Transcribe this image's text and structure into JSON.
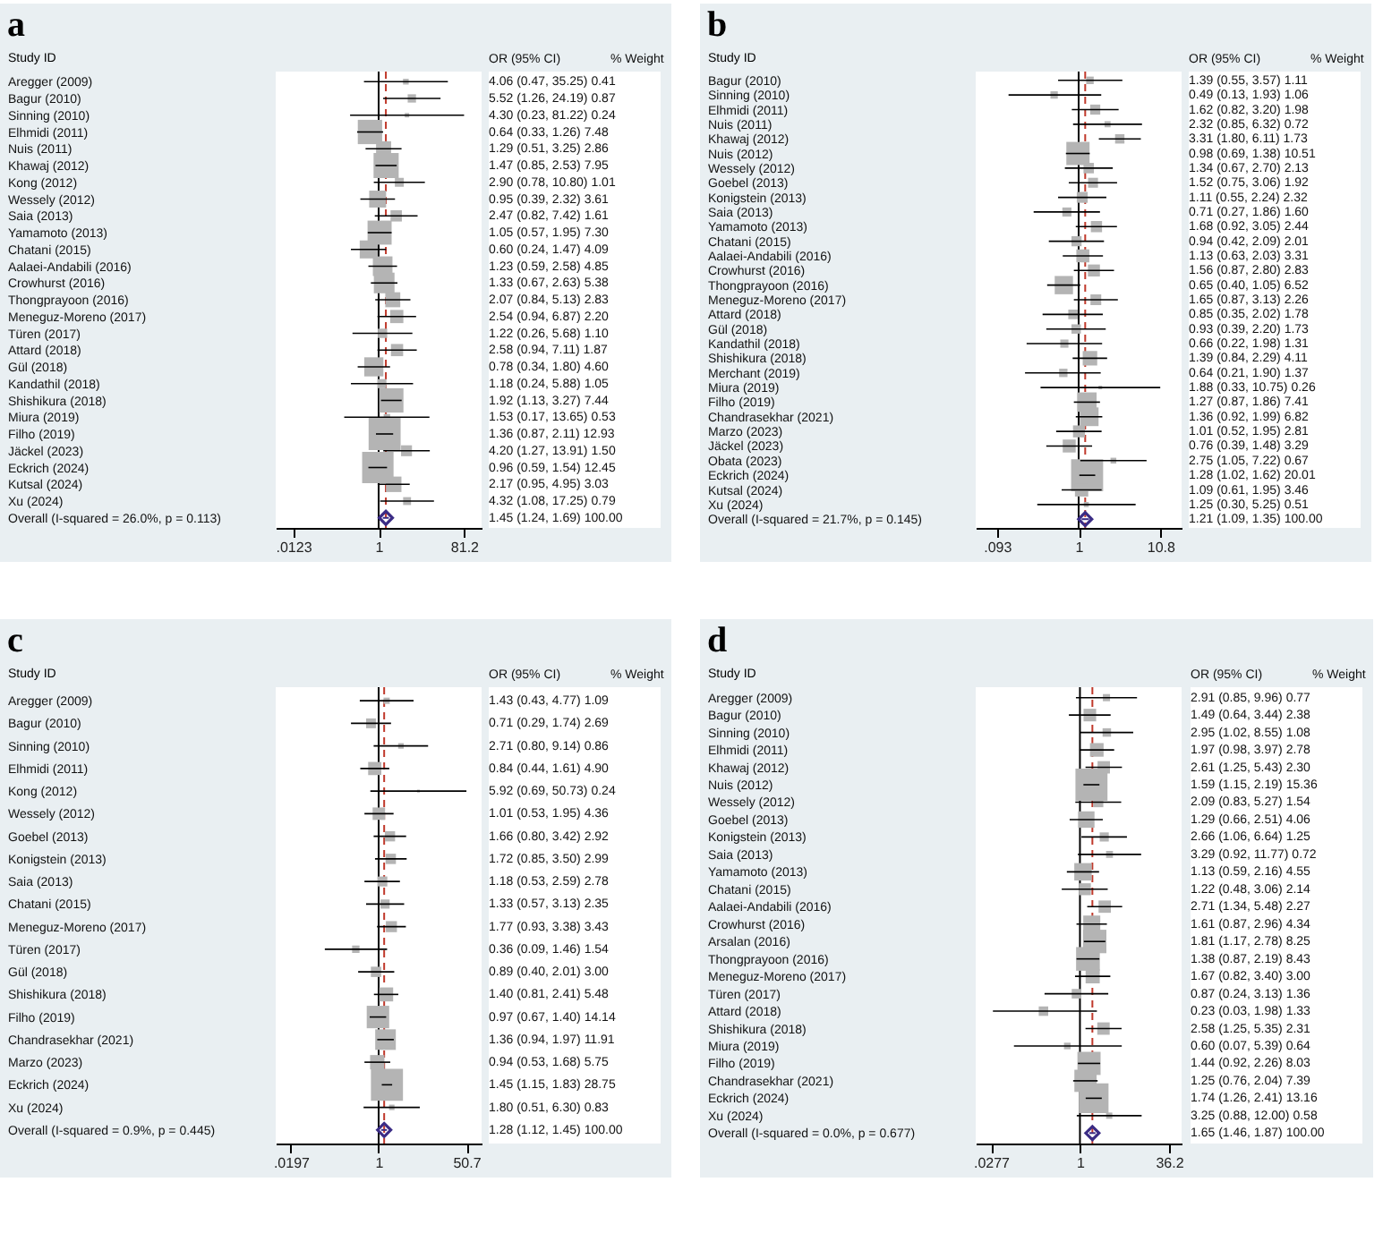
{
  "chart_data": [
    {
      "type": "bubble",
      "orientation": "horizontal",
      "title": "a",
      "ylabel": "Study ID",
      "log": "x",
      "marker": "square",
      "xlim": [
        0.005,
        200
      ],
      "xticks": [
        {
          "value": 0.0123,
          "label": ".0123"
        },
        1,
        81.2
      ],
      "categories": [
        "Aregger (2009)",
        "Bagur (2010)",
        "Sinning (2010)",
        "Elhmidi (2011)",
        "Nuis (2011)",
        "Khawaj (2012)",
        "Kong (2012)",
        "Wessely (2012)",
        "Saia (2013)",
        "Yamamoto (2013)",
        "Chatani (2015)",
        "Aalaei-Andabili (2016)",
        "Crowhurst (2016)",
        "Thongprayoon (2016)",
        "Meneguz-Moreno (2017)",
        "Türen (2017)",
        "Attard (2018)",
        "Gül (2018)",
        "Kandathil (2018)",
        "Shishikura (2018)",
        "Miura (2019)",
        "Filho (2019)",
        "Jäckel (2023)",
        "Eckrich (2024)",
        "Kutsal (2024)",
        "Xu (2024)",
        "Overall (I-squared = 26.0%, p = 0.113)"
      ],
      "annotations": [
        "OR (95% CI)",
        "% Weight",
        "4.06 (0.47, 35.25) 0.41",
        "5.52 (1.26, 24.19) 0.87",
        "4.30 (0.23, 81.22) 0.24",
        "0.64 (0.33, 1.26) 7.48",
        "1.29 (0.51, 3.25) 2.86",
        "1.47 (0.85, 2.53) 7.95",
        "2.90 (0.78, 10.80) 1.01",
        "0.95 (0.39, 2.32) 3.61",
        "2.47 (0.82, 7.42) 1.61",
        "1.05 (0.57, 1.95) 7.30",
        "0.60 (0.24, 1.47) 4.09",
        "1.23 (0.59, 2.58) 4.85",
        "1.33 (0.67, 2.63) 5.38",
        "2.07 (0.84, 5.13) 2.83",
        "2.54 (0.94, 6.87) 2.20",
        "1.22 (0.26, 5.68) 1.10",
        "2.58 (0.94, 7.11) 1.87",
        "0.78 (0.34, 1.80) 4.60",
        "1.18 (0.24, 5.88) 1.05",
        "1.92 (1.13, 3.27) 7.44",
        "1.53 (0.17, 13.65) 0.53",
        "1.36 (0.87, 2.11) 12.93",
        "4.20 (1.27, 13.91) 1.50",
        "0.96 (0.59, 1.54) 12.45",
        "2.17 (0.95, 4.95) 3.03",
        "4.32 (1.08, 17.25) 0.79",
        "1.45 (1.24, 1.69) 100.00"
      ],
      "ref_lines": [
        {
          "axis": "x",
          "value": 1,
          "color": "#000000",
          "line_style": "solid"
        },
        {
          "axis": "x",
          "value": 1.45,
          "color": "#c0392b",
          "line_style": "dashed"
        }
      ],
      "series": [
        {
          "color": "#b4b4b4",
          "values": [
            4.06,
            5.52,
            4.3,
            0.64,
            1.29,
            1.47,
            2.9,
            0.95,
            2.47,
            1.05,
            0.6,
            1.23,
            1.33,
            2.07,
            2.54,
            1.22,
            2.58,
            0.78,
            1.18,
            1.92,
            1.53,
            1.36,
            4.2,
            0.96,
            2.17,
            4.32,
            null
          ],
          "errors": [
            [
              0.47,
              35.25
            ],
            [
              1.26,
              24.19
            ],
            [
              0.23,
              81.22
            ],
            [
              0.33,
              1.26
            ],
            [
              0.51,
              3.25
            ],
            [
              0.85,
              2.53
            ],
            [
              0.78,
              10.8
            ],
            [
              0.39,
              2.32
            ],
            [
              0.82,
              7.42
            ],
            [
              0.57,
              1.95
            ],
            [
              0.24,
              1.47
            ],
            [
              0.59,
              2.58
            ],
            [
              0.67,
              2.63
            ],
            [
              0.84,
              5.13
            ],
            [
              0.94,
              6.87
            ],
            [
              0.26,
              5.68
            ],
            [
              0.94,
              7.11
            ],
            [
              0.34,
              1.8
            ],
            [
              0.24,
              5.88
            ],
            [
              1.13,
              3.27
            ],
            [
              0.17,
              13.65
            ],
            [
              0.87,
              2.11
            ],
            [
              1.27,
              13.91
            ],
            [
              0.59,
              1.54
            ],
            [
              0.95,
              4.95
            ],
            [
              1.08,
              17.25
            ],
            null
          ],
          "sizes": [
            0.032,
            0.067,
            0.019,
            0.578,
            0.221,
            0.615,
            0.078,
            0.279,
            0.125,
            0.565,
            0.316,
            0.375,
            0.416,
            0.219,
            0.17,
            0.085,
            0.145,
            0.356,
            0.081,
            0.575,
            0.041,
            1,
            0.116,
            0.963,
            0.234,
            0.061,
            null
          ]
        },
        {
          "color": "#3b2c85",
          "marker": "diamond",
          "values": [
            null,
            null,
            null,
            null,
            null,
            null,
            null,
            null,
            null,
            null,
            null,
            null,
            null,
            null,
            null,
            null,
            null,
            null,
            null,
            null,
            null,
            null,
            null,
            null,
            null,
            null,
            1.45
          ],
          "errors": [
            null,
            null,
            null,
            null,
            null,
            null,
            null,
            null,
            null,
            null,
            null,
            null,
            null,
            null,
            null,
            null,
            null,
            null,
            null,
            null,
            null,
            null,
            null,
            null,
            null,
            null,
            [
              1.24,
              1.69
            ]
          ]
        }
      ]
    },
    {
      "type": "bubble",
      "orientation": "horizontal",
      "title": "b",
      "ylabel": "Study ID",
      "log": "x",
      "marker": "square",
      "xlim": [
        0.05,
        20
      ],
      "xticks": [
        {
          "value": 0.093,
          "label": ".093"
        },
        1,
        10.8
      ],
      "categories": [
        "Bagur (2010)",
        "Sinning (2010)",
        "Elhmidi (2011)",
        "Nuis (2011)",
        "Khawaj (2012)",
        "Nuis (2012)",
        "Wessely (2012)",
        "Goebel (2013)",
        "Konigstein (2013)",
        "Saia (2013)",
        "Yamamoto (2013)",
        "Chatani (2015)",
        "Aalaei-Andabili (2016)",
        "Crowhurst (2016)",
        "Thongprayoon (2016)",
        "Meneguz-Moreno (2017)",
        "Attard (2018)",
        "Gül (2018)",
        "Kandathil (2018)",
        "Shishikura (2018)",
        "Merchant (2019)",
        "Miura (2019)",
        "Filho (2019)",
        "Chandrasekhar (2021)",
        "Marzo (2023)",
        "Jäckel (2023)",
        "Obata (2023)",
        "Eckrich (2024)",
        "Kutsal (2024)",
        "Xu (2024)",
        "Overall (I-squared = 21.7%, p = 0.145)"
      ],
      "annotations": [
        "OR (95% CI)",
        "% Weight",
        "1.39 (0.55, 3.57) 1.11",
        "0.49 (0.13, 1.93) 1.06",
        "1.62 (0.82, 3.20) 1.98",
        "2.32 (0.85, 6.32) 0.72",
        "3.31 (1.80, 6.11) 1.73",
        "0.98 (0.69, 1.38) 10.51",
        "1.34 (0.67, 2.70) 2.13",
        "1.52 (0.75, 3.06) 1.92",
        "1.11 (0.55, 2.24) 2.32",
        "0.71 (0.27, 1.86) 1.60",
        "1.68 (0.92, 3.05) 2.44",
        "0.94 (0.42, 2.09) 2.01",
        "1.13 (0.63, 2.03) 3.31",
        "1.56 (0.87, 2.80) 2.83",
        "0.65 (0.40, 1.05) 6.52",
        "1.65 (0.87, 3.13) 2.26",
        "0.85 (0.35, 2.02) 1.78",
        "0.93 (0.39, 2.20) 1.73",
        "0.66 (0.22, 1.98) 1.31",
        "1.39 (0.84, 2.29) 4.11",
        "0.64 (0.21, 1.90) 1.37",
        "1.88 (0.33, 10.75) 0.26",
        "1.27 (0.87, 1.86) 7.41",
        "1.36 (0.92, 1.99) 6.82",
        "1.01 (0.52, 1.95) 2.81",
        "0.76 (0.39, 1.48) 3.29",
        "2.75 (1.05, 7.22) 0.67",
        "1.28 (1.02, 1.62) 20.01",
        "1.09 (0.61, 1.95) 3.46",
        "1.25 (0.30, 5.25) 0.51",
        "1.21 (1.09, 1.35) 100.00"
      ],
      "ref_lines": [
        {
          "axis": "x",
          "value": 1,
          "color": "#000000",
          "line_style": "solid"
        },
        {
          "axis": "x",
          "value": 1.21,
          "color": "#c0392b",
          "line_style": "dashed"
        }
      ],
      "series": [
        {
          "color": "#b4b4b4",
          "values": [
            1.39,
            0.49,
            1.62,
            2.32,
            3.31,
            0.98,
            1.34,
            1.52,
            1.11,
            0.71,
            1.68,
            0.94,
            1.13,
            1.56,
            0.65,
            1.65,
            0.85,
            0.93,
            0.66,
            1.39,
            0.64,
            1.88,
            1.27,
            1.36,
            1.01,
            0.76,
            2.75,
            1.28,
            1.09,
            1.25,
            null
          ],
          "errors": [
            [
              0.55,
              3.57
            ],
            [
              0.13,
              1.93
            ],
            [
              0.82,
              3.2
            ],
            [
              0.85,
              6.32
            ],
            [
              1.8,
              6.11
            ],
            [
              0.69,
              1.38
            ],
            [
              0.67,
              2.7
            ],
            [
              0.75,
              3.06
            ],
            [
              0.55,
              2.24
            ],
            [
              0.27,
              1.86
            ],
            [
              0.92,
              3.05
            ],
            [
              0.42,
              2.09
            ],
            [
              0.63,
              2.03
            ],
            [
              0.87,
              2.8
            ],
            [
              0.4,
              1.05
            ],
            [
              0.87,
              3.13
            ],
            [
              0.35,
              2.02
            ],
            [
              0.39,
              2.2
            ],
            [
              0.22,
              1.98
            ],
            [
              0.84,
              2.29
            ],
            [
              0.21,
              1.9
            ],
            [
              0.33,
              10.75
            ],
            [
              0.87,
              1.86
            ],
            [
              0.92,
              1.99
            ],
            [
              0.52,
              1.95
            ],
            [
              0.39,
              1.48
            ],
            [
              1.05,
              7.22
            ],
            [
              1.02,
              1.62
            ],
            [
              0.61,
              1.95
            ],
            [
              0.3,
              5.25
            ],
            null
          ],
          "sizes": [
            0.055,
            0.053,
            0.099,
            0.036,
            0.086,
            0.525,
            0.106,
            0.096,
            0.116,
            0.08,
            0.122,
            0.1,
            0.165,
            0.141,
            0.326,
            0.113,
            0.089,
            0.086,
            0.065,
            0.205,
            0.068,
            0.013,
            0.37,
            0.341,
            0.14,
            0.164,
            0.033,
            1,
            0.173,
            0.025,
            null
          ]
        },
        {
          "color": "#3b2c85",
          "marker": "diamond",
          "values": [
            null,
            null,
            null,
            null,
            null,
            null,
            null,
            null,
            null,
            null,
            null,
            null,
            null,
            null,
            null,
            null,
            null,
            null,
            null,
            null,
            null,
            null,
            null,
            null,
            null,
            null,
            null,
            null,
            null,
            null,
            1.21
          ],
          "errors": [
            null,
            null,
            null,
            null,
            null,
            null,
            null,
            null,
            null,
            null,
            null,
            null,
            null,
            null,
            null,
            null,
            null,
            null,
            null,
            null,
            null,
            null,
            null,
            null,
            null,
            null,
            null,
            null,
            null,
            null,
            [
              1.09,
              1.35
            ]
          ]
        }
      ]
    },
    {
      "type": "bubble",
      "orientation": "horizontal",
      "title": "c",
      "ylabel": "Study ID",
      "log": "x",
      "marker": "square",
      "xlim": [
        0.01,
        100
      ],
      "xticks": [
        {
          "value": 0.0197,
          "label": ".0197"
        },
        1,
        50.7
      ],
      "categories": [
        "Aregger (2009)",
        "Bagur (2010)",
        "Sinning (2010)",
        "Elhmidi (2011)",
        "Kong (2012)",
        "Wessely (2012)",
        "Goebel (2013)",
        "Konigstein (2013)",
        "Saia (2013)",
        "Chatani (2015)",
        "Meneguz-Moreno (2017)",
        "Türen (2017)",
        "Gül (2018)",
        "Shishikura (2018)",
        "Filho (2019)",
        "Chandrasekhar (2021)",
        "Marzo (2023)",
        "Eckrich (2024)",
        "Xu (2024)",
        "Overall (I-squared = 0.9%, p = 0.445)"
      ],
      "annotations": [
        "OR (95% CI)",
        "% Weight",
        "1.43 (0.43, 4.77) 1.09",
        "0.71 (0.29, 1.74) 2.69",
        "2.71 (0.80, 9.14) 0.86",
        "0.84 (0.44, 1.61) 4.90",
        "5.92 (0.69, 50.73) 0.24",
        "1.01 (0.53, 1.95) 4.36",
        "1.66 (0.80, 3.42) 2.92",
        "1.72 (0.85, 3.50) 2.99",
        "1.18 (0.53, 2.59) 2.78",
        "1.33 (0.57, 3.13) 2.35",
        "1.77 (0.93, 3.38) 3.43",
        "0.36 (0.09, 1.46) 1.54",
        "0.89 (0.40, 2.01) 3.00",
        "1.40 (0.81, 2.41) 5.48",
        "0.97 (0.67, 1.40) 14.14",
        "1.36 (0.94, 1.97) 11.91",
        "0.94 (0.53, 1.68) 5.75",
        "1.45 (1.15, 1.83) 28.75",
        "1.80 (0.51, 6.30) 0.83",
        "1.28 (1.12, 1.45) 100.00"
      ],
      "ref_lines": [
        {
          "axis": "x",
          "value": 1,
          "color": "#000000",
          "line_style": "solid"
        },
        {
          "axis": "x",
          "value": 1.28,
          "color": "#c0392b",
          "line_style": "dashed"
        }
      ],
      "series": [
        {
          "color": "#b4b4b4",
          "values": [
            1.43,
            0.71,
            2.71,
            0.84,
            5.92,
            1.01,
            1.66,
            1.72,
            1.18,
            1.33,
            1.77,
            0.36,
            0.89,
            1.4,
            0.97,
            1.36,
            0.94,
            1.45,
            1.8,
            null
          ],
          "errors": [
            [
              0.43,
              4.77
            ],
            [
              0.29,
              1.74
            ],
            [
              0.8,
              9.14
            ],
            [
              0.44,
              1.61
            ],
            [
              0.69,
              50.73
            ],
            [
              0.53,
              1.95
            ],
            [
              0.8,
              3.42
            ],
            [
              0.85,
              3.5
            ],
            [
              0.53,
              2.59
            ],
            [
              0.57,
              3.13
            ],
            [
              0.93,
              3.38
            ],
            [
              0.09,
              1.46
            ],
            [
              0.4,
              2.01
            ],
            [
              0.81,
              2.41
            ],
            [
              0.67,
              1.4
            ],
            [
              0.94,
              1.97
            ],
            [
              0.53,
              1.68
            ],
            [
              1.15,
              1.83
            ],
            [
              0.51,
              6.3
            ],
            null
          ],
          "sizes": [
            0.038,
            0.094,
            0.03,
            0.17,
            0.008,
            0.152,
            0.102,
            0.104,
            0.097,
            0.082,
            0.119,
            0.054,
            0.104,
            0.191,
            0.492,
            0.414,
            0.2,
            1,
            0.029,
            null
          ]
        },
        {
          "color": "#3b2c85",
          "marker": "diamond",
          "values": [
            null,
            null,
            null,
            null,
            null,
            null,
            null,
            null,
            null,
            null,
            null,
            null,
            null,
            null,
            null,
            null,
            null,
            null,
            null,
            1.28
          ],
          "errors": [
            null,
            null,
            null,
            null,
            null,
            null,
            null,
            null,
            null,
            null,
            null,
            null,
            null,
            null,
            null,
            null,
            null,
            null,
            null,
            [
              1.12,
              1.45
            ]
          ]
        }
      ]
    },
    {
      "type": "bubble",
      "orientation": "horizontal",
      "title": "d",
      "ylabel": "Study ID",
      "log": "x",
      "marker": "square",
      "xlim": [
        0.015,
        60
      ],
      "xticks": [
        {
          "value": 0.0277,
          "label": ".0277"
        },
        1,
        36.2
      ],
      "categories": [
        "Aregger (2009)",
        "Bagur (2010)",
        "Sinning (2010)",
        "Elhmidi (2011)",
        "Khawaj (2012)",
        "Nuis (2012)",
        "Wessely (2012)",
        "Goebel (2013)",
        "Konigstein (2013)",
        "Saia (2013)",
        "Yamamoto (2013)",
        "Chatani (2015)",
        "Aalaei-Andabili (2016)",
        "Crowhurst (2016)",
        "Arsalan (2016)",
        "Thongprayoon (2016)",
        "Meneguz-Moreno (2017)",
        "Türen (2017)",
        "Attard (2018)",
        "Shishikura (2018)",
        "Miura (2019)",
        "Filho (2019)",
        "Chandrasekhar (2021)",
        "Eckrich (2024)",
        "Xu (2024)",
        "Overall (I-squared = 0.0%, p = 0.677)"
      ],
      "annotations": [
        "OR (95% CI)",
        "% Weight",
        "2.91 (0.85, 9.96) 0.77",
        "1.49 (0.64, 3.44) 2.38",
        "2.95 (1.02, 8.55) 1.08",
        "1.97 (0.98, 3.97) 2.78",
        "2.61 (1.25, 5.43) 2.30",
        "1.59 (1.15, 2.19) 15.36",
        "2.09 (0.83, 5.27) 1.54",
        "1.29 (0.66, 2.51) 4.06",
        "2.66 (1.06, 6.64) 1.25",
        "3.29 (0.92, 11.77) 0.72",
        "1.13 (0.59, 2.16) 4.55",
        "1.22 (0.48, 3.06) 2.14",
        "2.71 (1.34, 5.48) 2.27",
        "1.61 (0.87, 2.96) 4.34",
        "1.81 (1.17, 2.78) 8.25",
        "1.38 (0.87, 2.19) 8.43",
        "1.67 (0.82, 3.40) 3.00",
        "0.87 (0.24, 3.13) 1.36",
        "0.23 (0.03, 1.98) 1.33",
        "2.58 (1.25, 5.35) 2.31",
        "0.60 (0.07, 5.39) 0.64",
        "1.44 (0.92, 2.26) 8.03",
        "1.25 (0.76, 2.04) 7.39",
        "1.74 (1.26, 2.41) 13.16",
        "3.25 (0.88, 12.00) 0.58",
        "1.65 (1.46, 1.87) 100.00"
      ],
      "ref_lines": [
        {
          "axis": "x",
          "value": 1,
          "color": "#000000",
          "line_style": "solid"
        },
        {
          "axis": "x",
          "value": 1.65,
          "color": "#c0392b",
          "line_style": "dashed"
        }
      ],
      "series": [
        {
          "color": "#b4b4b4",
          "values": [
            2.91,
            1.49,
            2.95,
            1.97,
            2.61,
            1.59,
            2.09,
            1.29,
            2.66,
            3.29,
            1.13,
            1.22,
            2.71,
            1.61,
            1.81,
            1.38,
            1.67,
            0.87,
            0.23,
            2.58,
            0.6,
            1.44,
            1.25,
            1.74,
            3.25,
            null
          ],
          "errors": [
            [
              0.85,
              9.96
            ],
            [
              0.64,
              3.44
            ],
            [
              1.02,
              8.55
            ],
            [
              0.98,
              3.97
            ],
            [
              1.25,
              5.43
            ],
            [
              1.15,
              2.19
            ],
            [
              0.83,
              5.27
            ],
            [
              0.66,
              2.51
            ],
            [
              1.06,
              6.64
            ],
            [
              0.92,
              11.77
            ],
            [
              0.59,
              2.16
            ],
            [
              0.48,
              3.06
            ],
            [
              1.34,
              5.48
            ],
            [
              0.87,
              2.96
            ],
            [
              1.17,
              2.78
            ],
            [
              0.87,
              2.19
            ],
            [
              0.82,
              3.4
            ],
            [
              0.24,
              3.13
            ],
            [
              0.03,
              1.98
            ],
            [
              1.25,
              5.35
            ],
            [
              0.07,
              5.39
            ],
            [
              0.92,
              2.26
            ],
            [
              0.76,
              2.04
            ],
            [
              1.26,
              2.41
            ],
            [
              0.88,
              12
            ],
            null
          ],
          "sizes": [
            0.05,
            0.155,
            0.07,
            0.181,
            0.15,
            1,
            0.1,
            0.264,
            0.081,
            0.047,
            0.296,
            0.139,
            0.148,
            0.283,
            0.537,
            0.549,
            0.195,
            0.089,
            0.087,
            0.15,
            0.042,
            0.523,
            0.481,
            0.857,
            0.038,
            null
          ]
        },
        {
          "color": "#3b2c85",
          "marker": "diamond",
          "values": [
            null,
            null,
            null,
            null,
            null,
            null,
            null,
            null,
            null,
            null,
            null,
            null,
            null,
            null,
            null,
            null,
            null,
            null,
            null,
            null,
            null,
            null,
            null,
            null,
            null,
            1.65
          ],
          "errors": [
            null,
            null,
            null,
            null,
            null,
            null,
            null,
            null,
            null,
            null,
            null,
            null,
            null,
            null,
            null,
            null,
            null,
            null,
            null,
            null,
            null,
            null,
            null,
            null,
            null,
            [
              1.46,
              1.87
            ]
          ]
        }
      ]
    }
  ]
}
